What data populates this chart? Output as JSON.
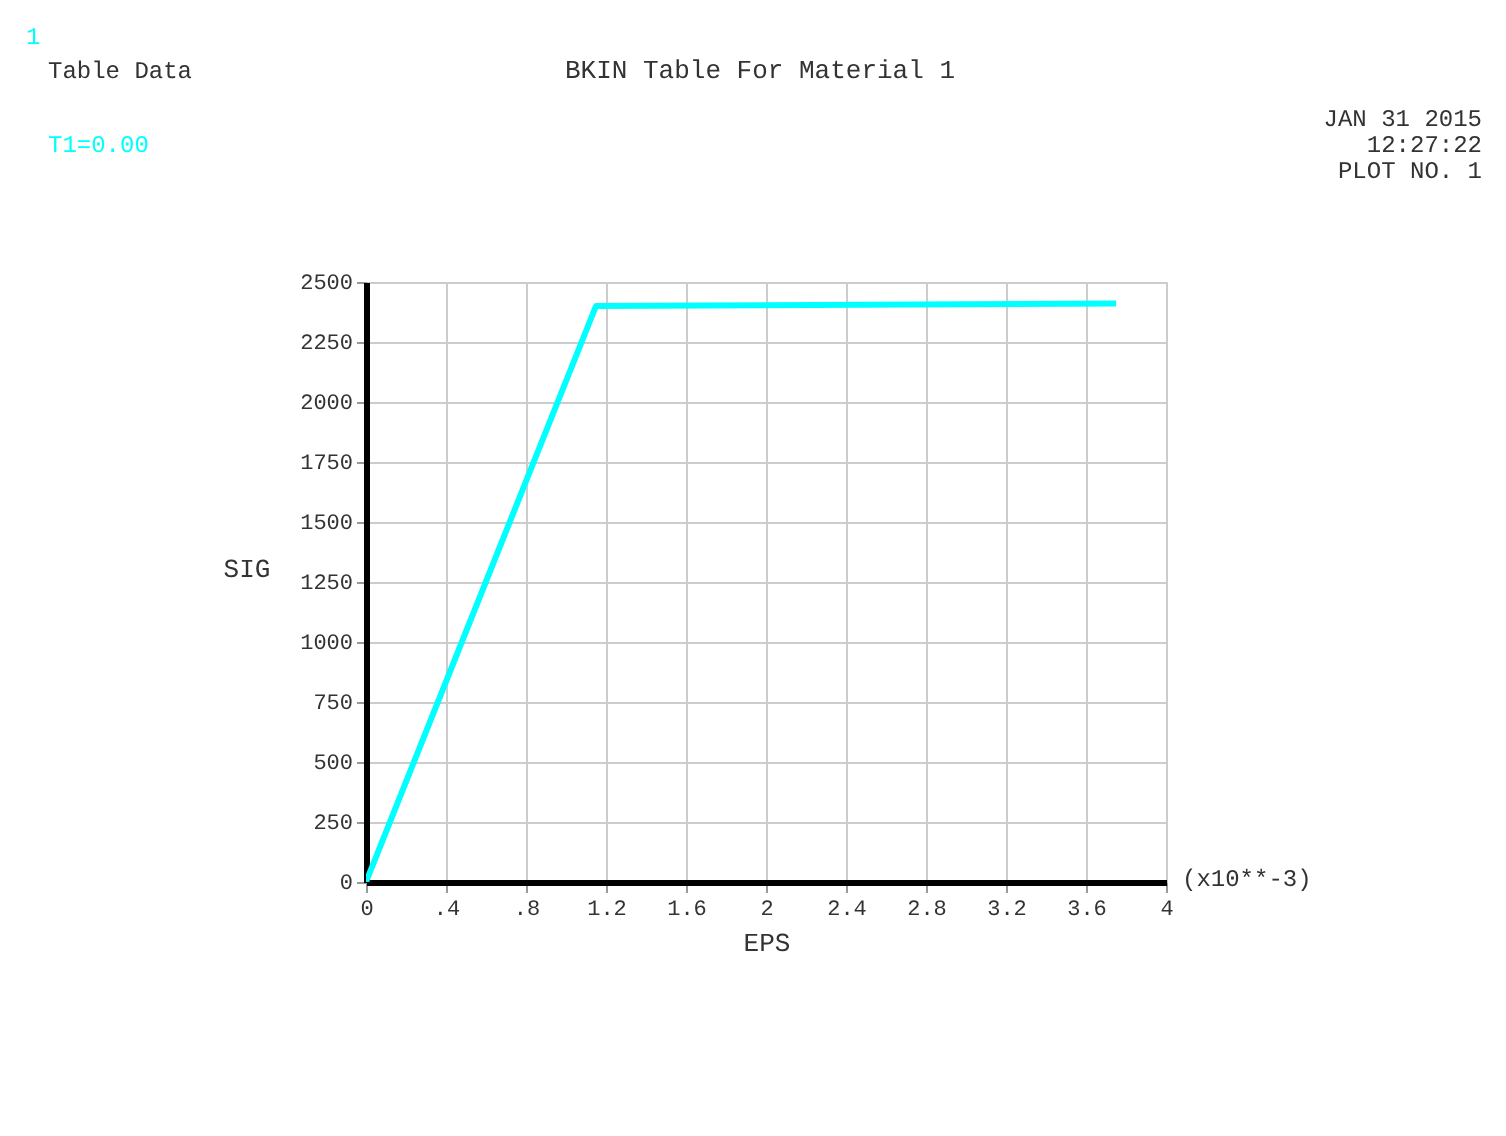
{
  "chart_data": {
    "type": "line",
    "title": "BKIN Table For Material    1",
    "xlabel": "EPS",
    "ylabel": "SIG",
    "annotations": [
      "1",
      "Table Data",
      "T1=0.00",
      "JAN 31 2015",
      "12:27:22",
      "PLOT NO.   1",
      "(x10**-3)"
    ],
    "x": [
      0,
      1.15,
      3.75
    ],
    "series": [
      {
        "color": "#00ffff",
        "values": [
          0,
          2400,
          2410
        ]
      }
    ],
    "xlim": [
      0,
      4
    ],
    "ylim": [
      0,
      2500
    ],
    "xticks": [
      0,
      {
        "value": 0.4,
        "label": ".4"
      },
      {
        "value": 0.8,
        "label": ".8"
      },
      1.2,
      1.6,
      2,
      2.4,
      2.8,
      3.2,
      3.6,
      4
    ],
    "yticks": [
      0,
      250,
      500,
      750,
      1000,
      1250,
      1500,
      1750,
      2000,
      2250,
      2500
    ],
    "grid": true,
    "marker": "none",
    "line_style": "solid"
  }
}
